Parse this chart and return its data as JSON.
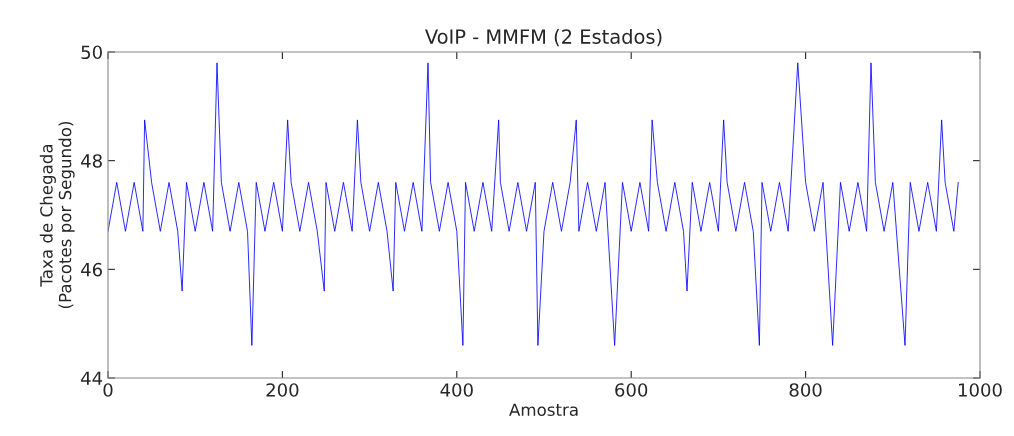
{
  "chart_data": {
    "type": "line",
    "title": "VoIP - MMFM (2 Estados)",
    "xlabel": "Amostra",
    "ylabel": "Taxa de Chegada\n(Pacotes por Segundo)",
    "xlim": [
      0,
      1000
    ],
    "xticks": [
      0,
      200,
      400,
      600,
      800,
      1000
    ],
    "ylim": [
      44,
      50
    ],
    "yticks": [
      44,
      46,
      48,
      50
    ],
    "grid": false,
    "line_style": "solid",
    "series": [
      {
        "color": "#0000ff",
        "x": [
          0,
          10,
          20,
          30,
          40,
          42,
          50,
          60,
          70,
          80,
          85,
          90,
          100,
          110,
          120,
          125,
          130,
          140,
          150,
          160,
          165,
          170,
          180,
          190,
          200,
          206,
          210,
          220,
          230,
          240,
          248,
          250,
          260,
          270,
          280,
          286,
          290,
          300,
          310,
          320,
          327,
          330,
          340,
          350,
          360,
          367,
          370,
          380,
          390,
          400,
          407,
          410,
          420,
          430,
          440,
          448,
          450,
          460,
          470,
          480,
          490,
          493,
          500,
          510,
          520,
          530,
          537,
          540,
          550,
          560,
          570,
          581,
          590,
          600,
          610,
          620,
          624,
          630,
          640,
          650,
          660,
          664,
          670,
          680,
          690,
          700,
          706,
          710,
          720,
          730,
          740,
          747,
          750,
          760,
          770,
          780,
          791,
          800,
          810,
          820,
          831,
          840,
          850,
          860,
          870,
          875,
          880,
          890,
          900,
          914,
          920,
          930,
          940,
          950,
          956,
          960,
          970,
          975
        ],
        "values": [
          46.7,
          47.6,
          46.7,
          47.6,
          46.7,
          48.75,
          47.6,
          46.7,
          47.6,
          46.7,
          45.6,
          47.6,
          46.7,
          47.6,
          46.7,
          49.8,
          47.6,
          46.7,
          47.6,
          46.7,
          44.6,
          47.6,
          46.7,
          47.6,
          46.7,
          48.75,
          47.6,
          46.7,
          47.6,
          46.7,
          45.6,
          47.6,
          46.7,
          47.6,
          46.7,
          48.75,
          47.6,
          46.7,
          47.6,
          46.7,
          45.6,
          47.6,
          46.7,
          47.6,
          46.7,
          49.8,
          47.6,
          46.7,
          47.6,
          46.7,
          44.6,
          47.6,
          46.7,
          47.6,
          46.7,
          48.75,
          47.6,
          46.7,
          47.6,
          46.7,
          47.6,
          44.6,
          46.7,
          47.6,
          46.7,
          47.6,
          48.75,
          46.7,
          47.6,
          46.7,
          47.6,
          44.6,
          47.6,
          46.7,
          47.6,
          46.7,
          48.75,
          47.6,
          46.7,
          47.6,
          46.7,
          45.6,
          47.6,
          46.7,
          47.6,
          46.7,
          48.75,
          47.6,
          46.7,
          47.6,
          46.7,
          44.6,
          47.6,
          46.7,
          47.6,
          46.7,
          49.8,
          47.6,
          46.7,
          47.6,
          44.6,
          47.6,
          46.7,
          47.6,
          46.7,
          49.8,
          47.6,
          46.7,
          47.6,
          44.6,
          47.6,
          46.7,
          47.6,
          46.7,
          48.75,
          47.6,
          46.7,
          47.6
        ]
      }
    ]
  }
}
